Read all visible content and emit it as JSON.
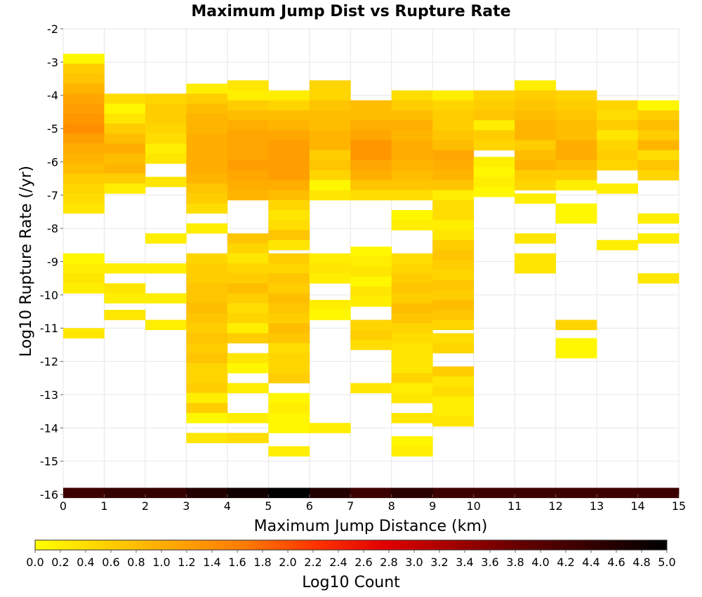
{
  "chart_data": {
    "type": "heatmap",
    "title": "Maximum Jump Dist vs Rupture Rate",
    "xlabel": "Maximum Jump Distance (km)",
    "ylabel": "Log10 Rupture Rate (/yr)",
    "xlim": [
      0,
      15
    ],
    "ylim": [
      -16,
      -2
    ],
    "x_ticks": [
      "0",
      "1",
      "2",
      "3",
      "4",
      "5",
      "6",
      "7",
      "8",
      "9",
      "10",
      "11",
      "12",
      "13",
      "14",
      "15"
    ],
    "y_ticks": [
      "-2",
      "-3",
      "-4",
      "-5",
      "-6",
      "-7",
      "-8",
      "-9",
      "-10",
      "-11",
      "-12",
      "-13",
      "-14",
      "-15",
      "-16"
    ],
    "x_bin_width": 1,
    "y_bin_height": 0.3,
    "grid": true,
    "colorbar": {
      "label": "Log10 Count",
      "min": 0.0,
      "max": 5.0,
      "ticks": [
        "0.0",
        "0.2",
        "0.4",
        "0.6",
        "0.8",
        "1.0",
        "1.2",
        "1.4",
        "1.6",
        "1.8",
        "2.0",
        "2.2",
        "2.4",
        "2.6",
        "2.8",
        "3.0",
        "3.2",
        "3.4",
        "3.6",
        "3.8",
        "4.0",
        "4.2",
        "4.4",
        "4.6",
        "4.8",
        "5.0"
      ],
      "colors": [
        "#ffff00",
        "#ffd000",
        "#ffa500",
        "#ff7a00",
        "#ff3300",
        "#e00000",
        "#a00000",
        "#600000",
        "#300000",
        "#000000"
      ]
    },
    "cells_note": "each cell: [x_bin_start_km, log10_rate_bin_center, log10_count]",
    "cells": [
      [
        0,
        -2.9,
        0.1
      ],
      [
        0,
        -3.2,
        0.6
      ],
      [
        0,
        -3.5,
        0.7
      ],
      [
        0,
        -3.8,
        0.9
      ],
      [
        0,
        -4.1,
        1.1
      ],
      [
        0,
        -4.4,
        1.2
      ],
      [
        0,
        -4.7,
        1.3
      ],
      [
        0,
        -5.0,
        1.4
      ],
      [
        0,
        -5.3,
        1.2
      ],
      [
        0,
        -5.6,
        1.0
      ],
      [
        0,
        -5.9,
        0.9
      ],
      [
        0,
        -6.2,
        0.8
      ],
      [
        0,
        -6.5,
        0.6
      ],
      [
        0,
        -6.8,
        0.5
      ],
      [
        0,
        -7.1,
        0.4
      ],
      [
        0,
        -7.4,
        0.3
      ],
      [
        0,
        -8.9,
        0.1
      ],
      [
        0,
        -9.2,
        0.2
      ],
      [
        0,
        -9.5,
        0.3
      ],
      [
        0,
        -9.8,
        0.2
      ],
      [
        0,
        -11.15,
        0.3
      ],
      [
        0,
        -15.95,
        4.3
      ],
      [
        1,
        -4.1,
        0.4
      ],
      [
        1,
        -4.4,
        0.1
      ],
      [
        1,
        -4.7,
        0.3
      ],
      [
        1,
        -5.0,
        0.6
      ],
      [
        1,
        -5.3,
        0.8
      ],
      [
        1,
        -5.6,
        1.0
      ],
      [
        1,
        -5.9,
        0.8
      ],
      [
        1,
        -6.2,
        0.9
      ],
      [
        1,
        -6.5,
        0.6
      ],
      [
        1,
        -6.8,
        0.2
      ],
      [
        1,
        -9.2,
        0.2
      ],
      [
        1,
        -9.8,
        0.3
      ],
      [
        1,
        -10.1,
        0.2
      ],
      [
        1,
        -10.6,
        0.3
      ],
      [
        1,
        -15.95,
        4.4
      ],
      [
        2,
        -4.1,
        0.5
      ],
      [
        2,
        -4.4,
        0.6
      ],
      [
        2,
        -4.7,
        0.6
      ],
      [
        2,
        -5.0,
        0.5
      ],
      [
        2,
        -5.3,
        0.4
      ],
      [
        2,
        -5.6,
        0.2
      ],
      [
        2,
        -5.9,
        0.3
      ],
      [
        2,
        -6.6,
        0.3
      ],
      [
        2,
        -8.3,
        0.2
      ],
      [
        2,
        -9.2,
        0.2
      ],
      [
        2,
        -10.1,
        0.2
      ],
      [
        2,
        -10.9,
        0.2
      ],
      [
        2,
        -15.95,
        4.4
      ],
      [
        3,
        -3.8,
        0.2
      ],
      [
        3,
        -4.1,
        0.6
      ],
      [
        3,
        -4.4,
        0.8
      ],
      [
        3,
        -4.7,
        0.9
      ],
      [
        3,
        -5.0,
        0.9
      ],
      [
        3,
        -5.3,
        1.0
      ],
      [
        3,
        -5.6,
        1.0
      ],
      [
        3,
        -5.9,
        1.0
      ],
      [
        3,
        -6.2,
        1.0
      ],
      [
        3,
        -6.5,
        0.9
      ],
      [
        3,
        -6.8,
        0.7
      ],
      [
        3,
        -7.1,
        0.6
      ],
      [
        3,
        -7.4,
        0.4
      ],
      [
        3,
        -8.0,
        0.2
      ],
      [
        3,
        -8.9,
        0.5
      ],
      [
        3,
        -9.2,
        0.6
      ],
      [
        3,
        -9.5,
        0.6
      ],
      [
        3,
        -9.8,
        0.7
      ],
      [
        3,
        -10.1,
        0.7
      ],
      [
        3,
        -10.4,
        0.8
      ],
      [
        3,
        -10.7,
        0.7
      ],
      [
        3,
        -11.0,
        0.6
      ],
      [
        3,
        -11.3,
        0.7
      ],
      [
        3,
        -11.6,
        0.6
      ],
      [
        3,
        -11.9,
        0.7
      ],
      [
        3,
        -12.2,
        0.5
      ],
      [
        3,
        -12.5,
        0.5
      ],
      [
        3,
        -12.8,
        0.6
      ],
      [
        3,
        -13.1,
        0.2
      ],
      [
        3,
        -13.4,
        0.6
      ],
      [
        3,
        -13.7,
        0.1
      ],
      [
        3,
        -14.3,
        0.3
      ],
      [
        3,
        -15.95,
        4.6
      ],
      [
        4,
        -3.7,
        0.3
      ],
      [
        4,
        -4.0,
        0.2
      ],
      [
        4,
        -4.3,
        0.6
      ],
      [
        4,
        -4.6,
        0.8
      ],
      [
        4,
        -4.9,
        1.0
      ],
      [
        4,
        -5.2,
        1.1
      ],
      [
        4,
        -5.5,
        1.1
      ],
      [
        4,
        -5.8,
        1.1
      ],
      [
        4,
        -6.1,
        1.2
      ],
      [
        4,
        -6.4,
        1.1
      ],
      [
        4,
        -6.7,
        1.0
      ],
      [
        4,
        -7.0,
        0.9
      ],
      [
        4,
        -8.3,
        0.7
      ],
      [
        4,
        -8.6,
        0.5
      ],
      [
        4,
        -8.9,
        0.3
      ],
      [
        4,
        -9.2,
        0.5
      ],
      [
        4,
        -9.5,
        0.6
      ],
      [
        4,
        -9.8,
        0.8
      ],
      [
        4,
        -10.1,
        0.6
      ],
      [
        4,
        -10.4,
        0.4
      ],
      [
        4,
        -10.7,
        0.5
      ],
      [
        4,
        -11.0,
        0.2
      ],
      [
        4,
        -11.3,
        0.6
      ],
      [
        4,
        -11.9,
        0.3
      ],
      [
        4,
        -12.2,
        0.1
      ],
      [
        4,
        -12.8,
        0.2
      ],
      [
        4,
        -13.7,
        0.2
      ],
      [
        4,
        -14.3,
        0.4
      ],
      [
        4,
        -15.95,
        4.8
      ],
      [
        5,
        -4.0,
        0.2
      ],
      [
        5,
        -4.3,
        0.5
      ],
      [
        5,
        -4.6,
        0.8
      ],
      [
        5,
        -4.9,
        0.9
      ],
      [
        5,
        -5.2,
        1.1
      ],
      [
        5,
        -5.5,
        1.2
      ],
      [
        5,
        -5.8,
        1.2
      ],
      [
        5,
        -6.1,
        1.2
      ],
      [
        5,
        -6.4,
        1.2
      ],
      [
        5,
        -6.7,
        1.0
      ],
      [
        5,
        -7.0,
        0.8
      ],
      [
        5,
        -7.3,
        0.5
      ],
      [
        5,
        -7.6,
        0.3
      ],
      [
        5,
        -7.9,
        0.4
      ],
      [
        5,
        -8.2,
        0.7
      ],
      [
        5,
        -8.5,
        0.3
      ],
      [
        5,
        -8.9,
        0.6
      ],
      [
        5,
        -9.2,
        0.5
      ],
      [
        5,
        -9.5,
        0.7
      ],
      [
        5,
        -9.8,
        0.6
      ],
      [
        5,
        -10.1,
        0.8
      ],
      [
        5,
        -10.4,
        0.7
      ],
      [
        5,
        -10.7,
        0.6
      ],
      [
        5,
        -11.0,
        0.8
      ],
      [
        5,
        -11.3,
        0.7
      ],
      [
        5,
        -11.6,
        0.4
      ],
      [
        5,
        -11.9,
        0.5
      ],
      [
        5,
        -12.2,
        0.5
      ],
      [
        5,
        -12.5,
        0.6
      ],
      [
        5,
        -13.1,
        0.1
      ],
      [
        5,
        -13.4,
        0.2
      ],
      [
        5,
        -13.7,
        0.1
      ],
      [
        5,
        -14.0,
        0.1
      ],
      [
        5,
        -14.7,
        0.2
      ],
      [
        5,
        -15.95,
        5.0
      ],
      [
        6,
        -3.7,
        0.5
      ],
      [
        6,
        -4.0,
        0.5
      ],
      [
        6,
        -4.3,
        0.7
      ],
      [
        6,
        -4.6,
        0.8
      ],
      [
        6,
        -4.9,
        0.8
      ],
      [
        6,
        -5.2,
        0.9
      ],
      [
        6,
        -5.5,
        0.9
      ],
      [
        6,
        -5.8,
        0.6
      ],
      [
        6,
        -6.1,
        0.7
      ],
      [
        6,
        -6.4,
        0.5
      ],
      [
        6,
        -6.7,
        0.1
      ],
      [
        6,
        -7.0,
        0.3
      ],
      [
        6,
        -8.9,
        0.2
      ],
      [
        6,
        -9.2,
        0.3
      ],
      [
        6,
        -9.5,
        0.2
      ],
      [
        6,
        -10.3,
        0.2
      ],
      [
        6,
        -10.6,
        0.1
      ],
      [
        6,
        -14.0,
        0.2
      ],
      [
        6,
        -15.95,
        4.6
      ],
      [
        7,
        -4.3,
        0.8
      ],
      [
        7,
        -4.6,
        0.8
      ],
      [
        7,
        -4.9,
        1.0
      ],
      [
        7,
        -5.2,
        1.1
      ],
      [
        7,
        -5.5,
        1.3
      ],
      [
        7,
        -5.8,
        1.3
      ],
      [
        7,
        -6.1,
        1.1
      ],
      [
        7,
        -6.4,
        1.0
      ],
      [
        7,
        -6.7,
        0.7
      ],
      [
        7,
        -7.0,
        0.4
      ],
      [
        7,
        -8.7,
        0.1
      ],
      [
        7,
        -9.0,
        0.2
      ],
      [
        7,
        -9.3,
        0.3
      ],
      [
        7,
        -9.6,
        0.1
      ],
      [
        7,
        -9.9,
        0.3
      ],
      [
        7,
        -10.2,
        0.2
      ],
      [
        7,
        -10.9,
        0.5
      ],
      [
        7,
        -11.2,
        0.6
      ],
      [
        7,
        -11.5,
        0.4
      ],
      [
        7,
        -12.8,
        0.3
      ],
      [
        7,
        -15.95,
        4.3
      ],
      [
        8,
        -4.0,
        0.4
      ],
      [
        8,
        -4.3,
        0.6
      ],
      [
        8,
        -4.6,
        0.8
      ],
      [
        8,
        -4.9,
        1.0
      ],
      [
        8,
        -5.2,
        0.9
      ],
      [
        8,
        -5.5,
        1.0
      ],
      [
        8,
        -5.8,
        1.0
      ],
      [
        8,
        -6.1,
        0.9
      ],
      [
        8,
        -6.4,
        0.8
      ],
      [
        8,
        -6.7,
        0.7
      ],
      [
        8,
        -7.0,
        0.4
      ],
      [
        8,
        -7.6,
        0.1
      ],
      [
        8,
        -7.9,
        0.2
      ],
      [
        8,
        -8.9,
        0.4
      ],
      [
        8,
        -9.2,
        0.5
      ],
      [
        8,
        -9.5,
        0.6
      ],
      [
        8,
        -9.8,
        0.7
      ],
      [
        8,
        -10.1,
        0.6
      ],
      [
        8,
        -10.4,
        0.8
      ],
      [
        8,
        -10.7,
        0.7
      ],
      [
        8,
        -11.0,
        0.5
      ],
      [
        8,
        -11.3,
        0.4
      ],
      [
        8,
        -11.6,
        0.3
      ],
      [
        8,
        -11.9,
        0.3
      ],
      [
        8,
        -12.2,
        0.3
      ],
      [
        8,
        -12.5,
        0.5
      ],
      [
        8,
        -12.8,
        0.2
      ],
      [
        8,
        -13.1,
        0.3
      ],
      [
        8,
        -13.7,
        0.3
      ],
      [
        8,
        -14.4,
        0.1
      ],
      [
        8,
        -14.7,
        0.2
      ],
      [
        8,
        -15.95,
        4.5
      ],
      [
        9,
        -4.0,
        0.2
      ],
      [
        9,
        -4.3,
        0.5
      ],
      [
        9,
        -4.6,
        0.6
      ],
      [
        9,
        -4.9,
        0.6
      ],
      [
        9,
        -5.2,
        0.7
      ],
      [
        9,
        -5.5,
        0.8
      ],
      [
        9,
        -5.8,
        1.1
      ],
      [
        9,
        -6.1,
        1.0
      ],
      [
        9,
        -6.4,
        0.9
      ],
      [
        9,
        -6.7,
        0.7
      ],
      [
        9,
        -7.0,
        0.2
      ],
      [
        9,
        -7.3,
        0.4
      ],
      [
        9,
        -7.6,
        0.4
      ],
      [
        9,
        -7.9,
        0.2
      ],
      [
        9,
        -8.2,
        0.3
      ],
      [
        9,
        -8.5,
        0.6
      ],
      [
        9,
        -8.8,
        0.7
      ],
      [
        9,
        -9.1,
        0.6
      ],
      [
        9,
        -9.4,
        0.5
      ],
      [
        9,
        -9.7,
        0.7
      ],
      [
        9,
        -10.0,
        0.6
      ],
      [
        9,
        -10.3,
        0.8
      ],
      [
        9,
        -10.6,
        0.7
      ],
      [
        9,
        -10.9,
        0.5
      ],
      [
        9,
        -11.3,
        0.4
      ],
      [
        9,
        -11.6,
        0.5
      ],
      [
        9,
        -12.3,
        0.6
      ],
      [
        9,
        -12.6,
        0.3
      ],
      [
        9,
        -12.9,
        0.4
      ],
      [
        9,
        -13.2,
        0.2
      ],
      [
        9,
        -13.5,
        0.2
      ],
      [
        9,
        -13.8,
        0.3
      ],
      [
        9,
        -15.95,
        4.3
      ],
      [
        10,
        -4.0,
        0.5
      ],
      [
        10,
        -4.3,
        0.6
      ],
      [
        10,
        -4.6,
        0.7
      ],
      [
        10,
        -4.9,
        0.2
      ],
      [
        10,
        -5.2,
        0.6
      ],
      [
        10,
        -5.5,
        0.5
      ],
      [
        10,
        -6.0,
        0.2
      ],
      [
        10,
        -6.3,
        0.1
      ],
      [
        10,
        -6.6,
        0.2
      ],
      [
        10,
        -6.9,
        0.1
      ],
      [
        10,
        -15.95,
        4.3
      ],
      [
        11,
        -3.7,
        0.2
      ],
      [
        11,
        -4.0,
        0.6
      ],
      [
        11,
        -4.3,
        0.7
      ],
      [
        11,
        -4.6,
        0.8
      ],
      [
        11,
        -4.9,
        0.9
      ],
      [
        11,
        -5.2,
        0.9
      ],
      [
        11,
        -5.5,
        0.6
      ],
      [
        11,
        -5.8,
        0.8
      ],
      [
        11,
        -6.1,
        0.9
      ],
      [
        11,
        -6.4,
        0.6
      ],
      [
        11,
        -6.7,
        0.5
      ],
      [
        11,
        -7.1,
        0.2
      ],
      [
        11,
        -8.3,
        0.3
      ],
      [
        11,
        -8.9,
        0.3
      ],
      [
        11,
        -9.2,
        0.3
      ],
      [
        11,
        -15.95,
        4.3
      ],
      [
        12,
        -4.0,
        0.5
      ],
      [
        12,
        -4.3,
        0.6
      ],
      [
        12,
        -4.6,
        0.7
      ],
      [
        12,
        -4.9,
        0.8
      ],
      [
        12,
        -5.2,
        0.8
      ],
      [
        12,
        -5.5,
        1.0
      ],
      [
        12,
        -5.8,
        1.0
      ],
      [
        12,
        -6.1,
        0.8
      ],
      [
        12,
        -6.4,
        0.6
      ],
      [
        12,
        -6.7,
        0.2
      ],
      [
        12,
        -7.4,
        0.1
      ],
      [
        12,
        -7.7,
        0.1
      ],
      [
        12,
        -10.9,
        0.5
      ],
      [
        12,
        -11.45,
        0.1
      ],
      [
        12,
        -11.75,
        0.1
      ],
      [
        12,
        -15.95,
        4.3
      ],
      [
        13,
        -4.3,
        0.5
      ],
      [
        13,
        -4.6,
        0.4
      ],
      [
        13,
        -4.9,
        0.6
      ],
      [
        13,
        -5.2,
        0.3
      ],
      [
        13,
        -5.5,
        0.5
      ],
      [
        13,
        -5.8,
        0.6
      ],
      [
        13,
        -6.1,
        0.5
      ],
      [
        13,
        -6.8,
        0.2
      ],
      [
        13,
        -8.5,
        0.2
      ],
      [
        13,
        -15.95,
        4.3
      ],
      [
        14,
        -4.3,
        0.1
      ],
      [
        14,
        -4.6,
        0.6
      ],
      [
        14,
        -4.9,
        0.8
      ],
      [
        14,
        -5.2,
        0.6
      ],
      [
        14,
        -5.5,
        0.9
      ],
      [
        14,
        -5.8,
        0.4
      ],
      [
        14,
        -6.1,
        0.7
      ],
      [
        14,
        -6.4,
        0.5
      ],
      [
        14,
        -7.7,
        0.2
      ],
      [
        14,
        -8.3,
        0.2
      ],
      [
        14,
        -9.5,
        0.3
      ],
      [
        14,
        -15.95,
        4.3
      ]
    ]
  }
}
